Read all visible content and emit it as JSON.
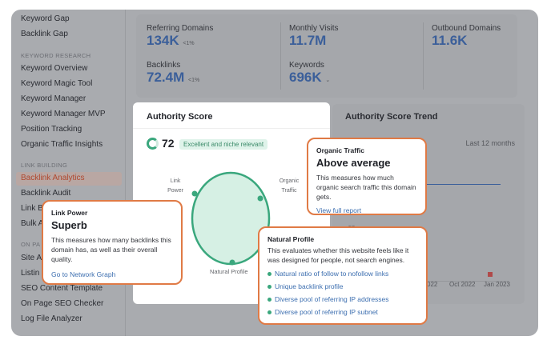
{
  "sidebar": {
    "items_top": [
      "Keyword Gap",
      "Backlink Gap"
    ],
    "section_keyword": "KEYWORD RESEARCH",
    "items_keyword": [
      "Keyword Overview",
      "Keyword Magic Tool",
      "Keyword Manager",
      "Keyword Manager MVP",
      "Position Tracking",
      "Organic Traffic Insights"
    ],
    "section_link": "LINK BUILDING",
    "items_link": [
      "Backlink Analytics",
      "Backlink Audit",
      "Link B",
      "Bulk A"
    ],
    "section_onpage": "ON PA",
    "items_onpage": [
      "Site A",
      "Listin",
      "SEO Content Template",
      "On Page SEO Checker",
      "Log File Analyzer"
    ],
    "active": "Backlink Analytics"
  },
  "stats": {
    "referring_domains": {
      "label": "Referring Domains",
      "value": "134K",
      "change": "<1%"
    },
    "backlinks": {
      "label": "Backlinks",
      "value": "72.4M",
      "change": "<1%"
    },
    "monthly_visits": {
      "label": "Monthly Visits",
      "value": "11.7M"
    },
    "keywords": {
      "label": "Keywords",
      "value": "696K"
    },
    "outbound_domains": {
      "label": "Outbound Domains",
      "value": "11.6K"
    }
  },
  "authority": {
    "title": "Authority Score",
    "score": "72",
    "badge": "Excellent and niche relevant",
    "labels": {
      "link_power": "Link Power",
      "organic": "Organic Traffic",
      "natural": "Natural Profile"
    }
  },
  "trend": {
    "title": "Authority Score Trend",
    "period": "Last 12 months",
    "y_tick": "50",
    "x_ticks": [
      "022",
      "Oct 2022",
      "Jan 2023"
    ]
  },
  "popups": {
    "link_power": {
      "kicker": "Link Power",
      "title": "Superb",
      "desc": "This measures how many backlinks this domain has, as well as their overall quality.",
      "link": "Go to Network Graph"
    },
    "organic": {
      "kicker": "Organic Traffic",
      "title": "Above average",
      "desc": "This measures how much organic search traffic this domain gets.",
      "link": "View full report"
    },
    "natural": {
      "kicker": "Natural Profile",
      "desc": "This evaluates whether this website feels like it was designed for people, not search engines.",
      "items": [
        "Natural ratio of follow to nofollow links",
        "Unique backlink profile",
        "Diverse pool of referring IP addresses",
        "Diverse pool of referring IP subnet"
      ]
    }
  },
  "colors": {
    "accent": "#e07a45",
    "blue": "#3b5f9a",
    "green": "#3aa77d"
  }
}
